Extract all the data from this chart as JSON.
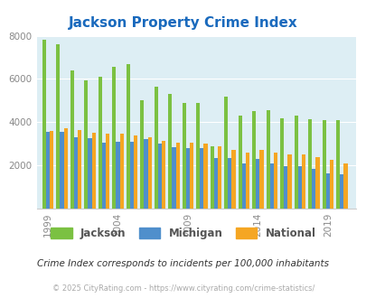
{
  "title": "Jackson Property Crime Index",
  "title_color": "#1a6abd",
  "subtitle": "Crime Index corresponds to incidents per 100,000 inhabitants",
  "footer": "© 2025 CityRating.com - https://www.cityrating.com/crime-statistics/",
  "years": [
    1999,
    2000,
    2001,
    2002,
    2003,
    2004,
    2005,
    2006,
    2007,
    2008,
    2009,
    2010,
    2011,
    2012,
    2013,
    2014,
    2015,
    2016,
    2017,
    2018,
    2019,
    2020
  ],
  "jackson": [
    7800,
    7600,
    6400,
    5950,
    6100,
    6550,
    6700,
    5000,
    5650,
    5300,
    4900,
    4900,
    2900,
    5200,
    4300,
    4500,
    4550,
    4200,
    4300,
    4150,
    4100,
    4100
  ],
  "michigan": [
    3550,
    3550,
    3300,
    3250,
    3050,
    3100,
    3100,
    3200,
    3000,
    2850,
    2800,
    2800,
    2350,
    2350,
    2100,
    2300,
    2100,
    1950,
    1950,
    1850,
    1650,
    1600
  ],
  "national": [
    3600,
    3700,
    3650,
    3500,
    3450,
    3450,
    3400,
    3300,
    3150,
    3050,
    3050,
    3000,
    2900,
    2700,
    2600,
    2700,
    2600,
    2500,
    2500,
    2400,
    2250,
    2100
  ],
  "jackson_color": "#7bc142",
  "michigan_color": "#4f8fcc",
  "national_color": "#f5a623",
  "bg_color": "#ddeef4",
  "ylim": [
    0,
    8000
  ],
  "yticks": [
    0,
    2000,
    4000,
    6000,
    8000
  ],
  "tick_label_color": "#888888",
  "grid_color": "#ffffff",
  "xlabel_years": [
    1999,
    2004,
    2009,
    2014,
    2019
  ],
  "legend_label_color": "#555555",
  "subtitle_color": "#333333",
  "footer_color": "#aaaaaa",
  "footer_link_color": "#5599cc"
}
